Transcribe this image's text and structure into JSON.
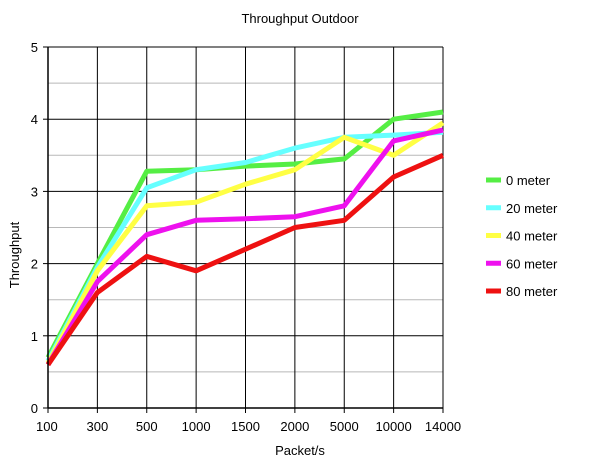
{
  "chart_data": {
    "type": "line",
    "title": "Throughput Outdoor",
    "xlabel": "Packet/s",
    "ylabel": "Throughput",
    "categories": [
      "100",
      "300",
      "500",
      "1000",
      "1500",
      "2000",
      "5000",
      "10000",
      "14000"
    ],
    "yticks": [
      "0",
      "1",
      "2",
      "3",
      "4",
      "5"
    ],
    "ylim": [
      0,
      5
    ],
    "grid": true,
    "legend_position": "right",
    "series": [
      {
        "name": "0 meter",
        "color": "#55ee44",
        "values": [
          0.7,
          2.0,
          3.28,
          3.3,
          3.35,
          3.38,
          3.45,
          4.0,
          4.1
        ]
      },
      {
        "name": "20 meter",
        "color": "#66ffff",
        "values": [
          0.65,
          1.95,
          3.05,
          3.3,
          3.4,
          3.6,
          3.75,
          3.78,
          3.82
        ]
      },
      {
        "name": "40 meter",
        "color": "#ffff44",
        "values": [
          0.62,
          1.9,
          2.8,
          2.85,
          3.1,
          3.3,
          3.75,
          3.5,
          3.95
        ]
      },
      {
        "name": "60 meter",
        "color": "#ee11ee",
        "values": [
          0.6,
          1.75,
          2.4,
          2.6,
          2.62,
          2.65,
          2.8,
          3.7,
          3.85
        ]
      },
      {
        "name": "80 meter",
        "color": "#ee1111",
        "values": [
          0.6,
          1.6,
          2.1,
          1.9,
          2.2,
          2.5,
          2.6,
          3.2,
          3.5
        ]
      }
    ]
  }
}
